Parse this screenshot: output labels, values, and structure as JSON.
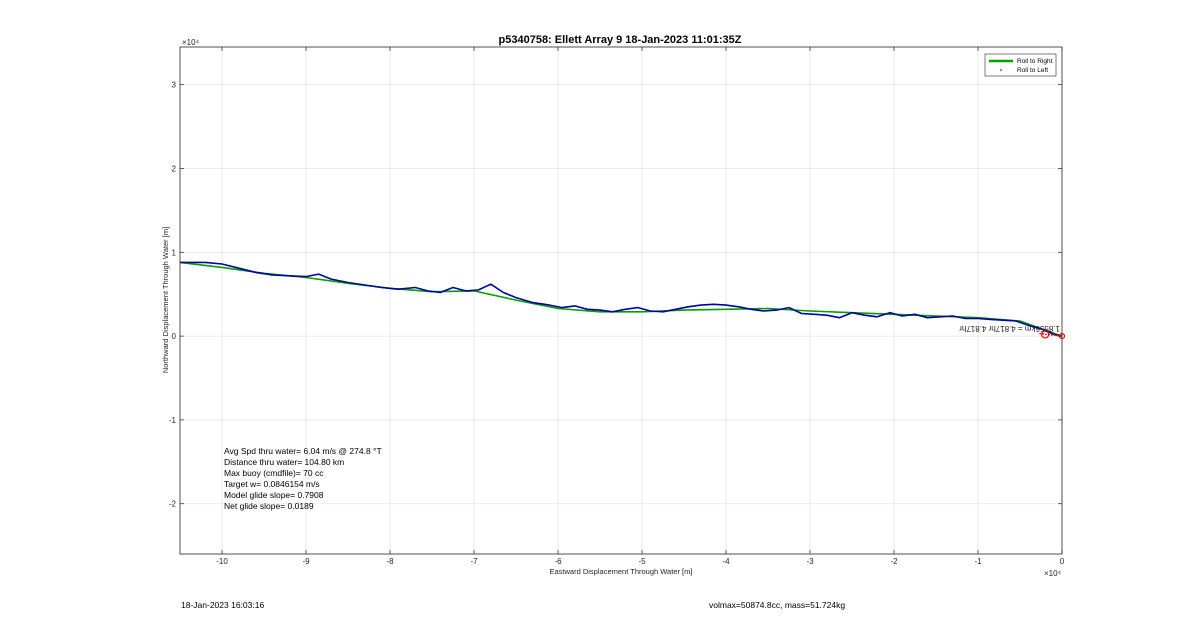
{
  "chart_data": {
    "type": "line",
    "title": "p5340758: Ellett Array 9 18-Jan-2023 11:01:35Z",
    "xlabel": "Eastward Displacement Through Water [m]",
    "ylabel": "Northward Displacement Through Water [m]",
    "x_exponent": "×10⁴",
    "y_exponent": "×10⁴",
    "xlim": [
      -105000,
      0
    ],
    "ylim": [
      -26000,
      34500
    ],
    "x_ticks": [
      -100000,
      -90000,
      -80000,
      -70000,
      -60000,
      -50000,
      -40000,
      -30000,
      -20000,
      -10000,
      0
    ],
    "x_tick_labels": [
      "-10",
      "-9",
      "-8",
      "-7",
      "-6",
      "-5",
      "-4",
      "-3",
      "-2",
      "-1",
      "0"
    ],
    "y_ticks": [
      -20000,
      -10000,
      0,
      10000,
      20000,
      30000
    ],
    "y_tick_labels": [
      "-2",
      "-1",
      "0",
      "1",
      "2",
      "3"
    ],
    "grid": true,
    "legend_position": "top-right",
    "legend": [
      "Roll to Right",
      "Roll to Left"
    ],
    "series": [
      {
        "color": "#00a000",
        "x": [
          -105000,
          -100000,
          -95000,
          -90000,
          -85000,
          -80000,
          -75000,
          -70000,
          -65000,
          -60000,
          -55000,
          -50000,
          -45000,
          -40000,
          -35000,
          -30000,
          -25000,
          -20000,
          -15000,
          -10000,
          -5000,
          -2000,
          0
        ],
        "y": [
          8800,
          8200,
          7500,
          7000,
          6300,
          5700,
          5300,
          5400,
          4300,
          3300,
          2900,
          2900,
          3100,
          3200,
          3300,
          3000,
          2800,
          2600,
          2400,
          2200,
          1800,
          700,
          0
        ]
      },
      {
        "color": "#0000a0",
        "x": [
          -105000,
          -102000,
          -100000,
          -98000,
          -96000,
          -94000,
          -92000,
          -90000,
          -88500,
          -87000,
          -85000,
          -83000,
          -81000,
          -79000,
          -77000,
          -75500,
          -74000,
          -72500,
          -71000,
          -69500,
          -68000,
          -66500,
          -65000,
          -63000,
          -61000,
          -59500,
          -58000,
          -56500,
          -55000,
          -53500,
          -52000,
          -50500,
          -49000,
          -47500,
          -46000,
          -44500,
          -43000,
          -41500,
          -40000,
          -38500,
          -37000,
          -35500,
          -34000,
          -32500,
          -31000,
          -29500,
          -28000,
          -26500,
          -25000,
          -23500,
          -22000,
          -20500,
          -19000,
          -17500,
          -16000,
          -14500,
          -13000,
          -11500,
          -10000,
          -8500,
          -7000,
          -5500,
          -4000,
          -3000,
          -2000,
          -1000,
          0
        ],
        "y": [
          8800,
          8800,
          8600,
          8100,
          7600,
          7300,
          7200,
          7100,
          7400,
          6800,
          6400,
          6100,
          5800,
          5600,
          5800,
          5400,
          5200,
          5800,
          5400,
          5500,
          6200,
          5200,
          4600,
          4000,
          3700,
          3400,
          3600,
          3200,
          3100,
          2900,
          3200,
          3400,
          3000,
          2900,
          3200,
          3500,
          3700,
          3800,
          3700,
          3500,
          3200,
          3000,
          3100,
          3400,
          2700,
          2600,
          2500,
          2200,
          2800,
          2500,
          2300,
          2800,
          2400,
          2600,
          2200,
          2300,
          2400,
          2100,
          2100,
          2000,
          1900,
          1800,
          1300,
          1000,
          700,
          200,
          0
        ]
      }
    ],
    "annotation": "1.8556km = 4.817hr 4.817hr: d1f0=?? 1.8556km",
    "annotation_display": "1.8556km = 4.817hr 4.817hr",
    "marker_color": "#ff0000"
  },
  "stats": [
    "Avg Spd thru water=  6.04 m/s @ 274.8 °T",
    "Distance thru water= 104.80 km",
    "Max buoy (cmdfile)= 70 cc",
    "Target w= 0.0846154 m/s",
    "Model glide slope= 0.7908",
    "Net glide slope= 0.0189"
  ],
  "footer": {
    "timestamp": "18-Jan-2023 16:03:16",
    "volmax": "volmax=50874.8cc, mass=51.724kg"
  }
}
